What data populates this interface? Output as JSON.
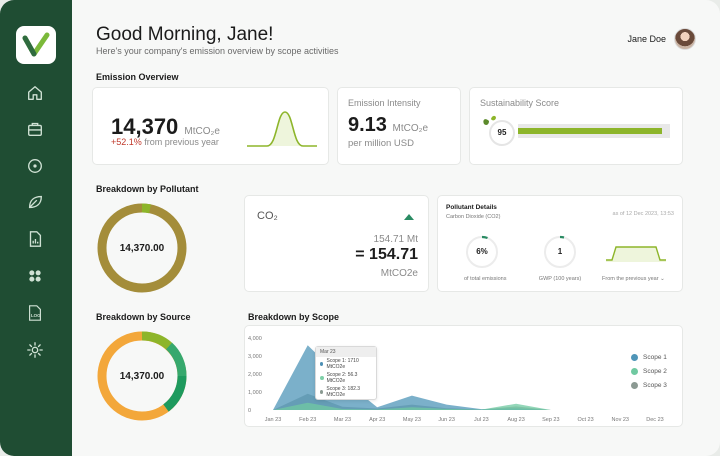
{
  "header": {
    "greeting": "Good Morning, Jane!",
    "subtitle": "Here's your company's emission overview by scope activities",
    "user_name": "Jane Doe"
  },
  "emission_overview": {
    "title": "Emission Overview",
    "total": "14,370",
    "total_unit": "MtCO₂e",
    "change": "+52.1%",
    "change_text": "from previous year",
    "intensity_label": "Emission Intensity",
    "intensity_value": "9.13",
    "intensity_unit": "MtCO₂e",
    "intensity_sub": "per million USD",
    "score_label": "Sustainability Score",
    "score_value": "95"
  },
  "pollutant": {
    "title": "Breakdown by Pollutant",
    "donut_center": "14,370.00",
    "co2_label": "CO₂",
    "co2_prev": "154.71 Mt",
    "co2_value": "= 154.71",
    "co2_unit": "MtCO2e",
    "details_title": "Pollutant Details",
    "details_sub": "Carbon Dioxide (CO2)",
    "details_date": "as of 12 Dec 2023, 13:53",
    "pct_value": "6%",
    "pct_label": "of total emissions",
    "gwp_value": "1",
    "gwp_label": "GWP (100 years)",
    "trend_label": "From the previous year"
  },
  "source": {
    "title": "Breakdown by Source",
    "donut_center": "14,370.00"
  },
  "scope": {
    "title": "Breakdown by Scope",
    "tooltip_month": "Mar 23",
    "tooltip_rows": [
      {
        "label": "Scope 1: 1710 MtCO2e",
        "color": "#4d8fb4"
      },
      {
        "label": "Scope 2: 56.3 MtCO2e",
        "color": "#7fd0a8"
      },
      {
        "label": "Scope 3: 182.3 MtCO2e",
        "color": "#8a9a92"
      }
    ],
    "legend": [
      {
        "label": "Scope 1",
        "color": "#4f95b8"
      },
      {
        "label": "Scope 2",
        "color": "#70c9a1"
      },
      {
        "label": "Scope 3",
        "color": "#8c9a93"
      }
    ]
  },
  "chart_data": {
    "type": "area",
    "categories": [
      "Jan 23",
      "Feb 23",
      "Mar 23",
      "Apr 23",
      "May 23",
      "Jun 23",
      "Jul 23",
      "Aug 23",
      "Sep 23",
      "Oct 23",
      "Nov 23",
      "Dec 23"
    ],
    "y_ticks": [
      "4,000",
      "3,000",
      "2,000",
      "1,000",
      "0"
    ],
    "ylim": [
      0,
      4000
    ],
    "series": [
      {
        "name": "Scope 1",
        "values": [
          0,
          3600,
          1710,
          150,
          800,
          300,
          50,
          100,
          0,
          0,
          0,
          0
        ]
      },
      {
        "name": "Scope 2",
        "values": [
          0,
          400,
          56.3,
          30,
          150,
          60,
          20,
          350,
          0,
          0,
          0,
          0
        ]
      },
      {
        "name": "Scope 3",
        "values": [
          0,
          900,
          182.3,
          80,
          300,
          100,
          30,
          200,
          0,
          0,
          0,
          0
        ]
      }
    ]
  },
  "colors": {
    "sidebar": "#1f4d33",
    "accent": "#8db52a",
    "negative": "#c0392b"
  },
  "nav": [
    "home-icon",
    "briefcase-icon",
    "target-icon",
    "leaf-icon",
    "report-icon",
    "grid-icon",
    "log-icon",
    "settings-icon"
  ]
}
